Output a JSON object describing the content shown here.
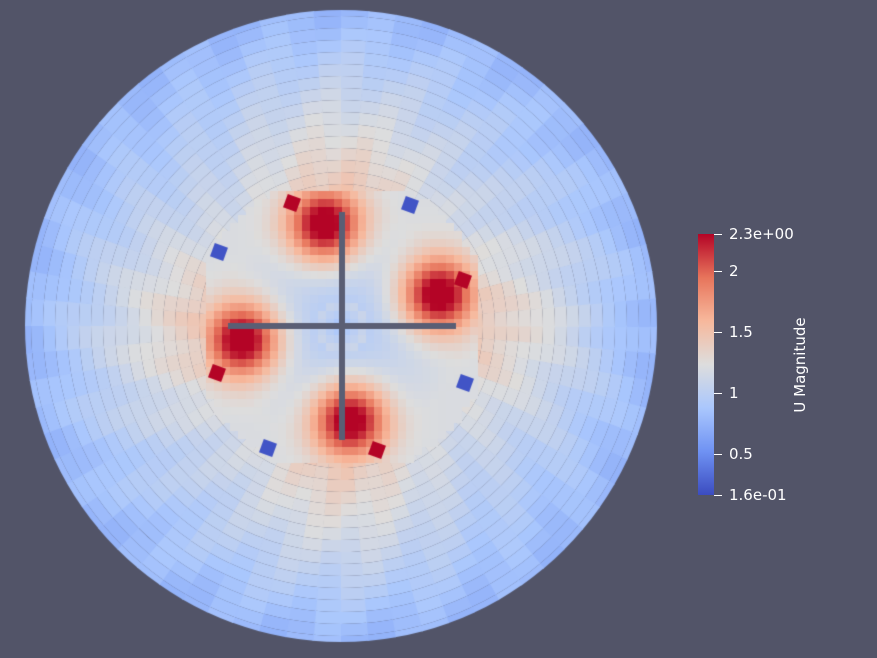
{
  "scene": {
    "background": "#525468",
    "field_min": 0.16,
    "field_max": 2.3,
    "divider_color": "#5a5e74"
  },
  "colorbar": {
    "title": "U Magnitude",
    "colors": [
      "#3b4cc0",
      "#6f92f3",
      "#aac7fd",
      "#dddddd",
      "#f7b89c",
      "#e7745b",
      "#b40426"
    ],
    "max_label": "2.3e+00",
    "min_label": "1.6e-01",
    "ticks": [
      {
        "value": 2.3,
        "label": "2.3e+00"
      },
      {
        "value": 2.0,
        "label": "2"
      },
      {
        "value": 1.5,
        "label": "1.5"
      },
      {
        "value": 1.0,
        "label": "1"
      },
      {
        "value": 0.5,
        "label": "0.5"
      },
      {
        "value": 0.16,
        "label": "1.6e-01"
      }
    ]
  }
}
